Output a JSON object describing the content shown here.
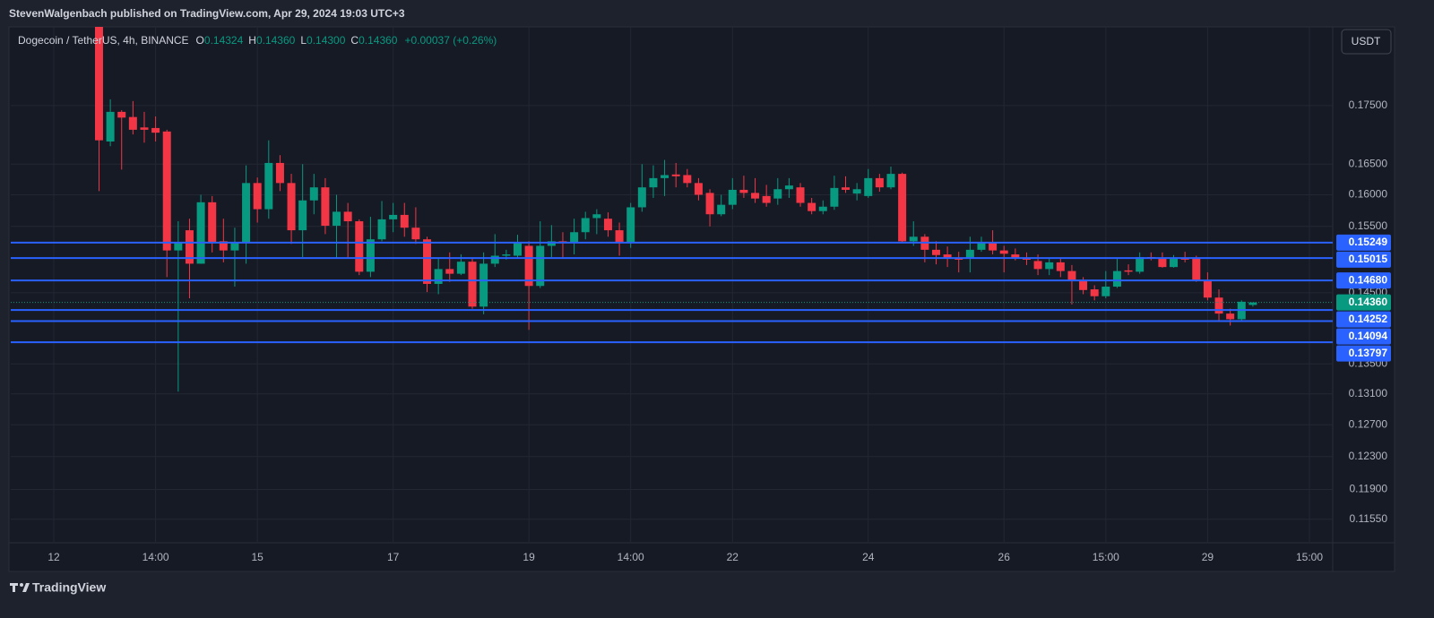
{
  "header": {
    "byline": "StevenWalgenbach published on TradingView.com, Apr 29, 2024 19:03 UTC+3",
    "symbol": "Dogecoin / TetherUS, 4h, BINANCE",
    "ohlc": [
      {
        "label": "O",
        "value": "0.14324"
      },
      {
        "label": "H",
        "value": "0.14360"
      },
      {
        "label": "L",
        "value": "0.14300"
      },
      {
        "label": "C",
        "value": "0.14360"
      }
    ],
    "change": "+0.00037 (+0.26%)",
    "currency": "USDT"
  },
  "footer": {
    "brand": "TradingView"
  },
  "chart_data": {
    "type": "candlestick",
    "log_scale": true,
    "grid": true,
    "up_color": "#089981",
    "down_color": "#f23645",
    "level_color": "#2962ff",
    "categories": [
      "12",
      null,
      null,
      null,
      null,
      null,
      null,
      null,
      null,
      "14:00",
      null,
      null,
      null,
      null,
      null,
      null,
      null,
      null,
      "15",
      null,
      null,
      null,
      null,
      null,
      null,
      null,
      null,
      null,
      null,
      null,
      "17",
      null,
      null,
      null,
      null,
      null,
      null,
      null,
      null,
      null,
      null,
      null,
      "19",
      null,
      null,
      null,
      null,
      null,
      null,
      null,
      null,
      "14:00",
      null,
      null,
      null,
      null,
      null,
      null,
      null,
      null,
      "22",
      null,
      null,
      null,
      null,
      null,
      null,
      null,
      null,
      null,
      null,
      null,
      "24",
      null,
      null,
      null,
      null,
      null,
      null,
      null,
      null,
      null,
      null,
      null,
      "26",
      null,
      null,
      null,
      null,
      null,
      null,
      null,
      null,
      "15:00",
      null,
      null,
      null,
      null,
      null,
      null,
      null,
      null,
      "29",
      null,
      null,
      null,
      null,
      null,
      null,
      null,
      null,
      "15:00"
    ],
    "open": [
      null,
      null,
      null,
      null,
      0.19,
      0.1688,
      0.1739,
      0.173,
      0.1712,
      0.1711,
      0.1705,
      0.1513,
      0.1544,
      0.1493,
      0.1588,
      0.1527,
      0.1513,
      0.1526,
      0.1619,
      0.1577,
      0.1652,
      0.1619,
      0.1544,
      0.1591,
      0.1612,
      0.1551,
      0.1573,
      0.1558,
      0.1481,
      0.153,
      0.1561,
      0.1568,
      0.1548,
      0.153,
      0.1463,
      0.1485,
      0.1478,
      0.1496,
      0.143,
      0.1493,
      0.1505,
      0.1505,
      0.152,
      0.146,
      0.152,
      0.1527,
      0.1525,
      0.1541,
      0.1563,
      0.1562,
      0.1544,
      0.1524,
      0.158,
      0.1612,
      0.1627,
      0.1633,
      0.1632,
      0.1619,
      0.1603,
      0.1569,
      0.1584,
      0.1608,
      0.1603,
      0.1598,
      0.1594,
      0.1609,
      0.1612,
      0.1587,
      0.1574,
      0.1581,
      0.1612,
      0.1602,
      0.1598,
      0.1627,
      0.1612,
      0.1634,
      0.1527,
      0.1534,
      0.1514,
      0.1507,
      0.1502,
      0.1501,
      0.1514,
      0.1526,
      0.1513,
      0.1507,
      0.1502,
      0.1497,
      0.1485,
      0.1495,
      0.1482,
      0.1469,
      0.1455,
      0.1445,
      0.1459,
      0.1483,
      0.1481,
      0.1503,
      0.1502,
      0.1488,
      0.1502,
      0.1501,
      0.1469,
      0.1443,
      0.142,
      0.1412,
      0.14324,
      null,
      null,
      null,
      null,
      null
    ],
    "high": [
      null,
      null,
      null,
      null,
      0.191,
      0.1761,
      0.1742,
      0.1758,
      0.1739,
      0.1731,
      0.1708,
      0.1558,
      0.1562,
      0.16,
      0.1598,
      0.1562,
      0.1548,
      0.1648,
      0.1628,
      0.169,
      0.1665,
      0.1634,
      0.165,
      0.1634,
      0.1627,
      0.16,
      0.1587,
      0.1561,
      0.1565,
      0.159,
      0.1587,
      0.1587,
      0.158,
      0.1534,
      0.1501,
      0.151,
      0.1507,
      0.1501,
      0.151,
      0.1538,
      0.1514,
      0.1537,
      0.1527,
      0.1558,
      0.1552,
      0.1541,
      0.1562,
      0.1573,
      0.1577,
      0.1572,
      0.1556,
      0.1587,
      0.165,
      0.1648,
      0.1657,
      0.1652,
      0.1642,
      0.1627,
      0.1609,
      0.16,
      0.1627,
      0.1631,
      0.1627,
      0.1616,
      0.1627,
      0.1627,
      0.1619,
      0.1595,
      0.1591,
      0.1631,
      0.163,
      0.1619,
      0.1642,
      0.1634,
      0.1646,
      0.1636,
      0.1558,
      0.1538,
      0.1527,
      0.1519,
      0.1511,
      0.1534,
      0.1534,
      0.1544,
      0.152,
      0.1516,
      0.151,
      0.1507,
      0.1501,
      0.1501,
      0.1491,
      0.1473,
      0.1461,
      0.1482,
      0.1501,
      0.1492,
      0.151,
      0.151,
      0.151,
      0.1506,
      0.1511,
      0.1505,
      0.148,
      0.1455,
      0.1427,
      0.1439,
      0.1436,
      null,
      null,
      null,
      null,
      null
    ],
    "low": [
      null,
      null,
      null,
      null,
      0.1606,
      0.168,
      0.1641,
      0.17,
      0.1686,
      0.1688,
      0.1473,
      0.1313,
      0.1442,
      0.1493,
      0.151,
      0.1495,
      0.1459,
      0.1493,
      0.1556,
      0.1562,
      0.1606,
      0.1523,
      0.1503,
      0.1569,
      0.1538,
      0.1501,
      0.1501,
      0.1476,
      0.1473,
      0.1527,
      0.1541,
      0.1534,
      0.1523,
      0.1451,
      0.1448,
      0.1466,
      0.1476,
      0.1427,
      0.1419,
      0.1488,
      0.1499,
      0.1501,
      0.1397,
      0.1457,
      0.1503,
      0.1501,
      0.1507,
      0.153,
      0.1538,
      0.1534,
      0.1505,
      0.1517,
      0.1573,
      0.1595,
      0.1598,
      0.1612,
      0.1612,
      0.1591,
      0.155,
      0.1566,
      0.1577,
      0.1595,
      0.1587,
      0.1581,
      0.1584,
      0.1595,
      0.1581,
      0.1569,
      0.1569,
      0.1576,
      0.1603,
      0.1591,
      0.1595,
      0.1605,
      0.1609,
      0.1525,
      0.152,
      0.1495,
      0.1492,
      0.1488,
      0.148,
      0.148,
      0.1511,
      0.1507,
      0.148,
      0.1498,
      0.1491,
      0.1476,
      0.1476,
      0.1473,
      0.1433,
      0.1448,
      0.1439,
      0.1442,
      0.1457,
      0.1476,
      0.1478,
      0.1498,
      0.1487,
      0.1487,
      0.1495,
      0.1466,
      0.1439,
      0.1408,
      0.1403,
      0.141,
      0.143,
      null,
      null,
      null,
      null,
      null
    ],
    "close": [
      null,
      null,
      null,
      null,
      0.169,
      0.1739,
      0.1729,
      0.1708,
      0.1708,
      0.1703,
      0.1513,
      0.1526,
      0.1493,
      0.1588,
      0.1524,
      0.1513,
      0.1526,
      0.1619,
      0.1577,
      0.1652,
      0.1619,
      0.1544,
      0.1591,
      0.1612,
      0.1551,
      0.1573,
      0.1558,
      0.1481,
      0.153,
      0.1561,
      0.1568,
      0.1548,
      0.153,
      0.1463,
      0.1485,
      0.1478,
      0.1496,
      0.143,
      0.1493,
      0.1505,
      0.1507,
      0.1526,
      0.146,
      0.152,
      0.1527,
      0.1525,
      0.1541,
      0.1563,
      0.1569,
      0.1544,
      0.1524,
      0.158,
      0.1612,
      0.1627,
      0.1632,
      0.163,
      0.1619,
      0.16,
      0.1569,
      0.1584,
      0.1608,
      0.1603,
      0.1594,
      0.1587,
      0.1609,
      0.1615,
      0.1587,
      0.1574,
      0.1581,
      0.1611,
      0.1608,
      0.1609,
      0.1627,
      0.1612,
      0.1634,
      0.1527,
      0.1534,
      0.1514,
      0.1506,
      0.1501,
      0.1499,
      0.1514,
      0.1526,
      0.1513,
      0.1508,
      0.1502,
      0.1499,
      0.1485,
      0.1495,
      0.1482,
      0.1469,
      0.1454,
      0.1445,
      0.1459,
      0.1482,
      0.1481,
      0.1503,
      0.1501,
      0.1488,
      0.1501,
      0.1499,
      0.1469,
      0.1443,
      0.142,
      0.1412,
      0.1437,
      0.1436,
      null,
      null,
      null,
      null,
      null
    ],
    "ylim": [
      0.1129,
      0.1894
    ],
    "yticks": [
      {
        "value": 0.1155,
        "label": "0.11550"
      },
      {
        "value": 0.119,
        "label": "0.11900"
      },
      {
        "value": 0.123,
        "label": "0.12300"
      },
      {
        "value": 0.127,
        "label": "0.12700"
      },
      {
        "value": 0.131,
        "label": "0.13100"
      },
      {
        "value": 0.135,
        "label": "0.13500"
      },
      {
        "value": 0.145,
        "label": "0.14500"
      },
      {
        "value": 0.155,
        "label": "0.15500"
      },
      {
        "value": 0.16,
        "label": "0.16000"
      },
      {
        "value": 0.165,
        "label": "0.16500"
      },
      {
        "value": 0.175,
        "label": "0.17500"
      }
    ],
    "levels": [
      {
        "value": 0.15249,
        "label": "0.15249"
      },
      {
        "value": 0.15015,
        "label": "0.15015"
      },
      {
        "value": 0.1468,
        "label": "0.14680"
      },
      {
        "value": 0.14252,
        "label": "0.14252"
      },
      {
        "value": 0.14094,
        "label": "0.14094"
      },
      {
        "value": 0.13797,
        "label": "0.13797"
      }
    ],
    "last_price": {
      "value": 0.1436,
      "label": "0.14360"
    }
  }
}
